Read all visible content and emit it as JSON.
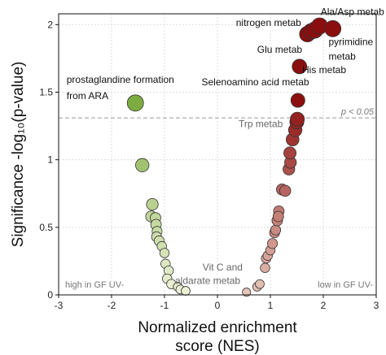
{
  "chart_data": {
    "type": "scatter",
    "title": "",
    "xlabel_line1": "Normalized enrichment",
    "xlabel_line2": "score (NES)",
    "ylabel": "Significance -log₁₀(p-value)",
    "xlim": [
      -3,
      3
    ],
    "ylim": [
      0,
      2.08
    ],
    "xticks": [
      -3,
      -2,
      -1,
      0,
      1,
      2,
      3
    ],
    "xtick_labels": [
      "-3",
      "-2",
      "-1",
      "0",
      "1",
      "2",
      "3"
    ],
    "yticks": [
      0,
      0.5,
      1,
      1.5,
      2
    ],
    "ytick_labels": [
      "0",
      "0.5",
      "1",
      "1.5",
      "2"
    ],
    "grid": true,
    "threshold": {
      "y": 1.31,
      "label": "p < 0.05"
    },
    "corner_left": "high in GF UV-",
    "corner_right": "low in GF UV-",
    "colors": {
      "neg_strong": "#7aab3c",
      "neg_light": "#eef2d8",
      "pos_strong": "#8b0e0e",
      "pos_light": "#e8c8bc",
      "threshold": "#9a9a9a",
      "grid": "#dddddd"
    },
    "points_negative": [
      {
        "x": -1.55,
        "y": 1.42,
        "size": 1.0
      },
      {
        "x": -1.42,
        "y": 0.96,
        "size": 0.75
      },
      {
        "x": -1.23,
        "y": 0.67,
        "size": 0.6
      },
      {
        "x": -1.25,
        "y": 0.58,
        "size": 0.55
      },
      {
        "x": -1.17,
        "y": 0.57,
        "size": 0.5
      },
      {
        "x": -1.16,
        "y": 0.52,
        "size": 0.5
      },
      {
        "x": -1.14,
        "y": 0.47,
        "size": 0.45
      },
      {
        "x": -1.15,
        "y": 0.43,
        "size": 0.45
      },
      {
        "x": -1.1,
        "y": 0.4,
        "size": 0.45
      },
      {
        "x": -1.05,
        "y": 0.36,
        "size": 0.4
      },
      {
        "x": -1.0,
        "y": 0.31,
        "size": 0.4
      },
      {
        "x": -0.98,
        "y": 0.23,
        "size": 0.4
      },
      {
        "x": -0.92,
        "y": 0.18,
        "size": 0.4
      },
      {
        "x": -0.95,
        "y": 0.12,
        "size": 0.4
      },
      {
        "x": -0.87,
        "y": 0.08,
        "size": 0.4
      },
      {
        "x": -0.75,
        "y": 0.06,
        "size": 0.35
      },
      {
        "x": -0.7,
        "y": 0.04,
        "size": 0.35
      },
      {
        "x": -0.6,
        "y": 0.03,
        "size": 0.35
      }
    ],
    "points_positive": [
      {
        "x": 0.55,
        "y": 0.02,
        "size": 0.3
      },
      {
        "x": 0.75,
        "y": 0.06,
        "size": 0.35
      },
      {
        "x": 0.8,
        "y": 0.08,
        "size": 0.35
      },
      {
        "x": 0.9,
        "y": 0.2,
        "size": 0.4
      },
      {
        "x": 0.92,
        "y": 0.27,
        "size": 0.4
      },
      {
        "x": 0.95,
        "y": 0.29,
        "size": 0.4
      },
      {
        "x": 1.0,
        "y": 0.33,
        "size": 0.4
      },
      {
        "x": 1.04,
        "y": 0.38,
        "size": 0.45
      },
      {
        "x": 1.08,
        "y": 0.46,
        "size": 0.45
      },
      {
        "x": 1.1,
        "y": 0.48,
        "size": 0.45
      },
      {
        "x": 1.13,
        "y": 0.55,
        "size": 0.5
      },
      {
        "x": 1.16,
        "y": 0.62,
        "size": 0.5
      },
      {
        "x": 1.15,
        "y": 0.58,
        "size": 0.5
      },
      {
        "x": 1.22,
        "y": 0.78,
        "size": 0.55
      },
      {
        "x": 1.28,
        "y": 0.77,
        "size": 0.55
      },
      {
        "x": 1.35,
        "y": 0.93,
        "size": 0.6
      },
      {
        "x": 1.38,
        "y": 0.98,
        "size": 0.6
      },
      {
        "x": 1.37,
        "y": 1.05,
        "size": 0.65
      },
      {
        "x": 1.42,
        "y": 1.15,
        "size": 0.7
      },
      {
        "x": 1.47,
        "y": 1.22,
        "size": 0.75
      },
      {
        "x": 1.5,
        "y": 1.28,
        "size": 0.8
      },
      {
        "x": 1.51,
        "y": 1.3,
        "size": 0.8
      },
      {
        "x": 1.52,
        "y": 1.44,
        "size": 0.8
      },
      {
        "x": 1.55,
        "y": 1.69,
        "size": 0.85
      },
      {
        "x": 1.7,
        "y": 1.93,
        "size": 0.95
      },
      {
        "x": 1.77,
        "y": 1.95,
        "size": 0.95
      },
      {
        "x": 1.84,
        "y": 1.96,
        "size": 1.0
      },
      {
        "x": 1.93,
        "y": 1.99,
        "size": 1.0
      },
      {
        "x": 2.18,
        "y": 1.97,
        "size": 1.0
      }
    ],
    "annotations": [
      {
        "text": "prostaglandine formation",
        "x": -2.85,
        "y": 1.57,
        "style": "dark",
        "anchor": "start"
      },
      {
        "text": "from ARA",
        "x": -2.85,
        "y": 1.45,
        "style": "dark",
        "anchor": "start"
      },
      {
        "text": "Ala/Asp metab",
        "x": 1.95,
        "y": 2.07,
        "style": "dark",
        "anchor": "start"
      },
      {
        "text": "nitrogen metab",
        "x": 0.35,
        "y": 1.99,
        "style": "dark",
        "anchor": "start"
      },
      {
        "text": "pyrimidine",
        "x": 2.1,
        "y": 1.85,
        "style": "dark",
        "anchor": "start"
      },
      {
        "text": "metab",
        "x": 2.1,
        "y": 1.74,
        "style": "dark",
        "anchor": "start"
      },
      {
        "text": "Glu metab",
        "x": 0.75,
        "y": 1.79,
        "style": "dark",
        "anchor": "start"
      },
      {
        "text": "His metab",
        "x": 1.6,
        "y": 1.64,
        "style": "dark",
        "anchor": "start"
      },
      {
        "text": "Selenoamino acid metab",
        "x": -0.3,
        "y": 1.55,
        "style": "dark",
        "anchor": "start"
      },
      {
        "text": "Trp metab",
        "x": 0.4,
        "y": 1.24,
        "style": "gray",
        "anchor": "start"
      },
      {
        "text": "Vit C and",
        "x": -0.28,
        "y": 0.18,
        "style": "gray",
        "anchor": "start"
      },
      {
        "text": "aldarate metab",
        "x": -0.8,
        "y": 0.08,
        "style": "gray",
        "anchor": "start"
      }
    ]
  }
}
